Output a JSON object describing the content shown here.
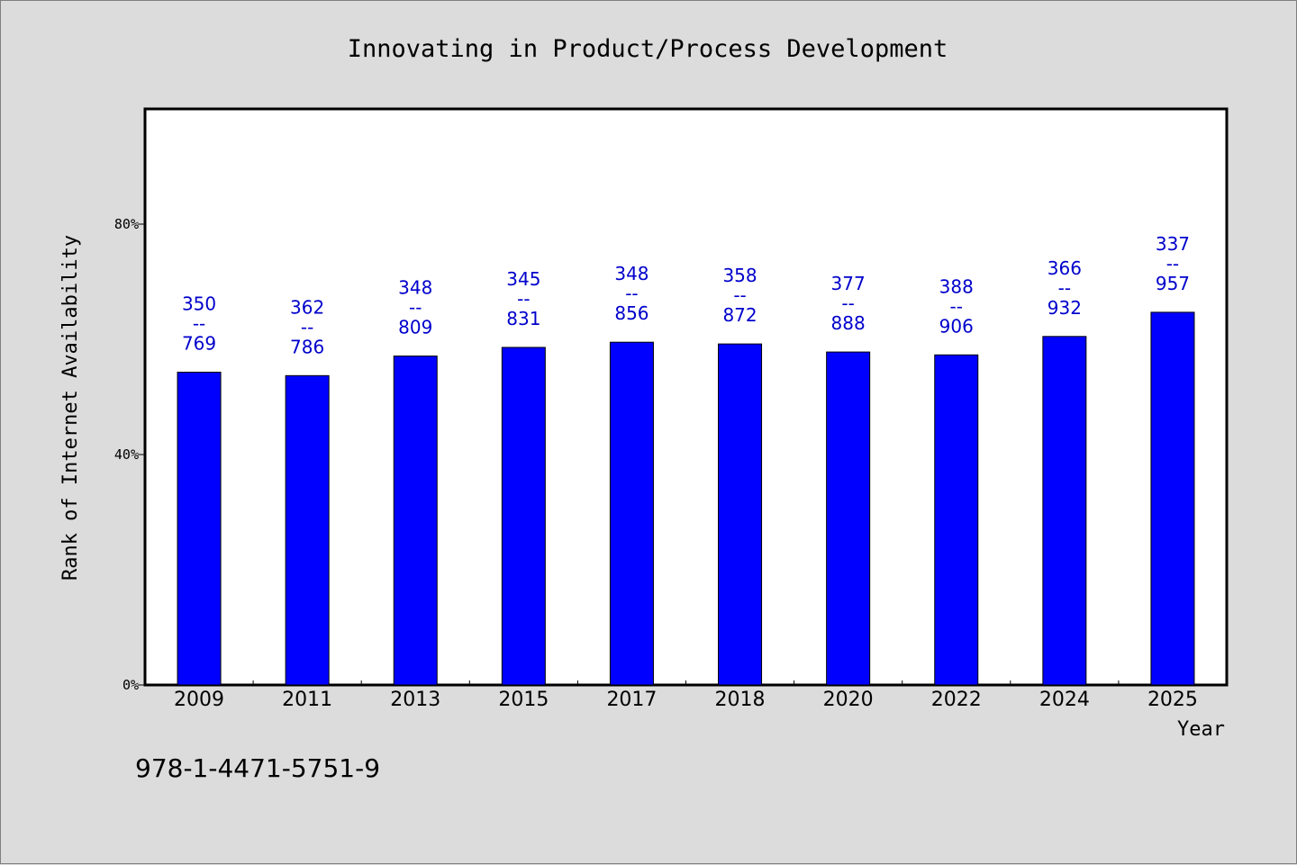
{
  "chart_data": {
    "type": "bar",
    "title": "Innovating in Product/Process Development",
    "xlabel": "Year",
    "ylabel": "Rank of Internet Availability",
    "categories": [
      "2009",
      "2011",
      "2013",
      "2015",
      "2017",
      "2018",
      "2020",
      "2022",
      "2024",
      "2025"
    ],
    "values": [
      54.3,
      53.7,
      57.1,
      58.6,
      59.5,
      59.2,
      57.8,
      57.3,
      60.5,
      64.7
    ],
    "data_labels": [
      {
        "top": "350",
        "sep": "--",
        "bottom": "769"
      },
      {
        "top": "362",
        "sep": "--",
        "bottom": "786"
      },
      {
        "top": "348",
        "sep": "--",
        "bottom": "809"
      },
      {
        "top": "345",
        "sep": "--",
        "bottom": "831"
      },
      {
        "top": "348",
        "sep": "--",
        "bottom": "856"
      },
      {
        "top": "358",
        "sep": "--",
        "bottom": "872"
      },
      {
        "top": "377",
        "sep": "--",
        "bottom": "888"
      },
      {
        "top": "388",
        "sep": "--",
        "bottom": "906"
      },
      {
        "top": "366",
        "sep": "--",
        "bottom": "932"
      },
      {
        "top": "337",
        "sep": "--",
        "bottom": "957"
      }
    ],
    "ylim": [
      0,
      100
    ],
    "yticks": [
      0,
      40,
      80
    ],
    "ytick_labels": [
      "0%",
      "40%",
      "80%"
    ],
    "grid": false,
    "bar_color": "#0000ff",
    "label_color": "#0000cc"
  },
  "footer": {
    "isbn": "978-1-4471-5751-9"
  }
}
